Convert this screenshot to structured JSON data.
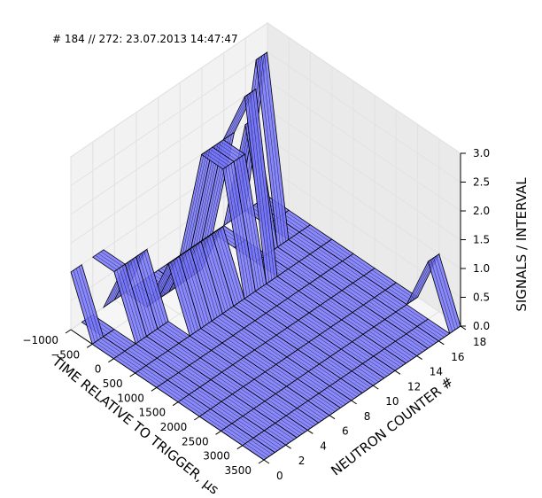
{
  "title": "# 184 // 272: 23.07.2013 14:47:47",
  "chart_data": {
    "type": "surface3d",
    "title": "# 184 // 272: 23.07.2013 14:47:47",
    "xlabel": "TIME RELATIVE TO TRIGGER, μs",
    "ylabel": "NEUTRON COUNTER #",
    "zlabel": "SIGNALS / INTERVAL",
    "xlim": [
      -1000,
      3500
    ],
    "ylim": [
      0,
      18
    ],
    "zlim": [
      0,
      3
    ],
    "x_ticks": [
      "−1000",
      "−500",
      "0",
      "500",
      "1000",
      "1500",
      "2000",
      "2500",
      "3000",
      "3500"
    ],
    "y_ticks": [
      "0",
      "2",
      "4",
      "6",
      "8",
      "10",
      "12",
      "14",
      "16",
      "18"
    ],
    "z_ticks": [
      "0.0",
      "0.5",
      "1.0",
      "1.5",
      "2.0",
      "2.5",
      "3.0"
    ],
    "grid": true,
    "face_color": "#7777ff",
    "edge_color": "#000000",
    "x_bins": [
      -1000,
      -500,
      0,
      500,
      1000,
      1500,
      2000,
      2500,
      3000,
      3500
    ],
    "counters": [
      0,
      1,
      2,
      3,
      4,
      5,
      6,
      7,
      8,
      9,
      10,
      11,
      12,
      13,
      14,
      15,
      16,
      17,
      18
    ],
    "series": [
      {
        "counter": 18,
        "peaks": [
          {
            "x": 3000,
            "z": 1
          }
        ]
      },
      {
        "counter": 16,
        "peaks": [
          {
            "x": -500,
            "z": 3
          }
        ]
      },
      {
        "counter": 15,
        "peaks": [
          {
            "x": -500,
            "z": 2
          }
        ]
      },
      {
        "counter": 13,
        "peaks": [
          {
            "x": 0,
            "z": 3
          },
          {
            "x": -500,
            "z": 2
          }
        ]
      },
      {
        "counter": 12,
        "peaks": [
          {
            "x": 0,
            "z": 2
          },
          {
            "x": -500,
            "z": 2
          }
        ]
      },
      {
        "counter": 11,
        "peaks": [
          {
            "x": -500,
            "z": 2
          },
          {
            "x": 0,
            "z": 2
          }
        ]
      },
      {
        "counter": 10,
        "peaks": [
          {
            "x": 0,
            "z": 1
          }
        ]
      },
      {
        "counter": 9,
        "peaks": [
          {
            "x": 0,
            "z": 1
          }
        ]
      },
      {
        "counter": 8,
        "peaks": [
          {
            "x": 0,
            "z": 1
          }
        ]
      },
      {
        "counter": 7,
        "peaks": [
          {
            "x": 0,
            "z": 1
          }
        ]
      },
      {
        "counter": 6,
        "peaks": [
          {
            "x": 0,
            "z": 1
          }
        ]
      },
      {
        "counter": 5,
        "peaks": [
          {
            "x": -500,
            "z": 1
          }
        ]
      },
      {
        "counter": 4,
        "peaks": [
          {
            "x": -500,
            "z": 1
          }
        ]
      },
      {
        "counter": 3,
        "peaks": [
          {
            "x": -1000,
            "z": 1
          },
          {
            "x": -500,
            "z": 1
          }
        ]
      },
      {
        "counter": 1,
        "peaks": [
          {
            "x": -1000,
            "z": 1
          }
        ]
      },
      {
        "counter": 0,
        "peaks": [
          {
            "x": 1500,
            "z": 1
          }
        ]
      }
    ]
  }
}
